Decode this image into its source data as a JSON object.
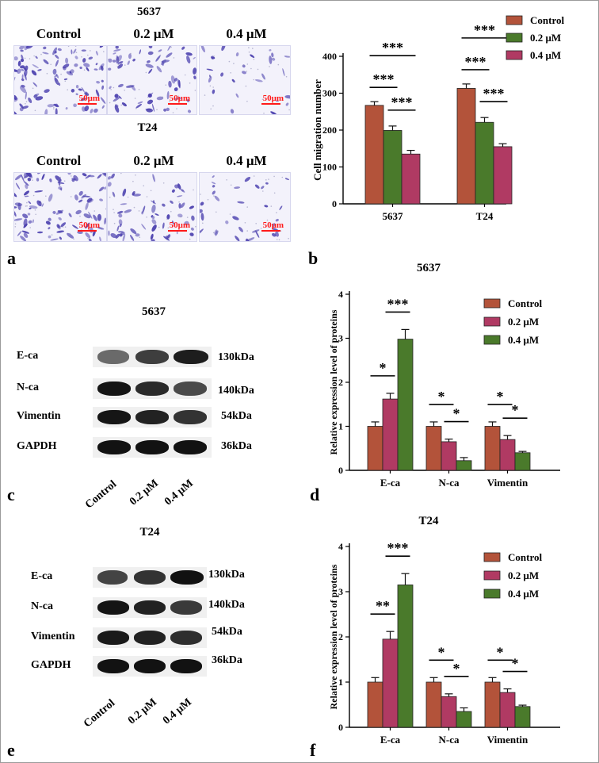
{
  "colors": {
    "control": "#b3533a",
    "c02": "#4a7a2b",
    "c04": "#b03a63",
    "stain": "#4a3fae",
    "scale": "#ff1a1a"
  },
  "panel_labels": {
    "a": "a",
    "b": "b",
    "c": "c",
    "d": "d",
    "e": "e",
    "f": "f"
  },
  "panel_a": {
    "title_5637": "5637",
    "title_t24": "T24",
    "columns": [
      "Control",
      "0.2 μM",
      "0.4 μM"
    ],
    "scale_bar": "50μm",
    "stain_density": {
      "5637": [
        0.9,
        0.6,
        0.25
      ],
      "T24": [
        0.9,
        0.55,
        0.3
      ]
    }
  },
  "blots": {
    "panel_c": {
      "title": "5637",
      "rows": [
        "E-ca",
        "N-ca",
        "Vimentin",
        "GAPDH"
      ],
      "kda": [
        "130kDa",
        "140kDa",
        "54kDa",
        "36kDa"
      ],
      "lanes": [
        "Control",
        "0.2 μM",
        "0.4 μM"
      ]
    },
    "panel_e": {
      "title": "T24",
      "rows": [
        "E-ca",
        "N-ca",
        "Vimentin",
        "GAPDH"
      ],
      "kda": [
        "130kDa",
        "140kDa",
        "54kDa",
        "36kDa"
      ],
      "lanes": [
        "Control",
        "0.2 μM",
        "0.4 μM"
      ]
    }
  },
  "chart_data": [
    {
      "id": "b",
      "type": "bar",
      "title": "",
      "categories": [
        "5637",
        "T24"
      ],
      "ylabel": "Cell migration number",
      "ylim": [
        0,
        400
      ],
      "yticks": [
        0,
        100,
        200,
        300,
        400
      ],
      "legend_position": "top-right",
      "series": [
        {
          "name": "Control",
          "values": [
            267,
            313
          ],
          "errors": [
            10,
            12
          ]
        },
        {
          "name": "0.2 μM",
          "values": [
            199,
            221
          ],
          "errors": [
            12,
            13
          ]
        },
        {
          "name": "0.4 μM",
          "values": [
            135,
            155
          ],
          "errors": [
            10,
            8
          ]
        }
      ],
      "colors": [
        "#b3533a",
        "#4a7a2b",
        "#b03a63"
      ],
      "annotations": [
        {
          "text": "***",
          "group": 0,
          "from": 0,
          "to": 2,
          "level": 1
        },
        {
          "text": "***",
          "group": 0,
          "from": 0,
          "to": 1,
          "level": 0
        },
        {
          "text": "***",
          "group": 0,
          "from": 1,
          "to": 2,
          "level": -1
        },
        {
          "text": "***",
          "group": 1,
          "from": 0,
          "to": 2,
          "level": 1
        },
        {
          "text": "***",
          "group": 1,
          "from": 0,
          "to": 1,
          "level": 0
        },
        {
          "text": "***",
          "group": 1,
          "from": 1,
          "to": 2,
          "level": -1
        }
      ]
    },
    {
      "id": "d",
      "type": "bar",
      "title": "5637",
      "categories": [
        "E-ca",
        "N-ca",
        "Vimentin"
      ],
      "ylabel": "Relative expression level of proteins",
      "ylim": [
        0,
        4
      ],
      "yticks": [
        0,
        1,
        2,
        3,
        4
      ],
      "legend_position": "top-right",
      "series": [
        {
          "name": "Control",
          "values": [
            1.0,
            1.0,
            1.0
          ],
          "errors": [
            0.1,
            0.1,
            0.1
          ]
        },
        {
          "name": "0.2 μM",
          "values": [
            1.62,
            0.65,
            0.7
          ],
          "errors": [
            0.13,
            0.06,
            0.09
          ]
        },
        {
          "name": "0.4 μM",
          "values": [
            2.98,
            0.22,
            0.4
          ],
          "errors": [
            0.22,
            0.07,
            0.03
          ]
        }
      ],
      "colors": [
        "#b3533a",
        "#b03a63",
        "#4a7a2b"
      ],
      "annotations": [
        {
          "text": "*",
          "group": 0,
          "from": 0,
          "to": 1
        },
        {
          "text": "***",
          "group": 0,
          "from": 1,
          "to": 2
        },
        {
          "text": "*",
          "group": 1,
          "from": 0,
          "to": 1
        },
        {
          "text": "*",
          "group": 1,
          "from": 1,
          "to": 2
        },
        {
          "text": "*",
          "group": 2,
          "from": 0,
          "to": 1
        },
        {
          "text": "*",
          "group": 2,
          "from": 1,
          "to": 2
        }
      ]
    },
    {
      "id": "f",
      "type": "bar",
      "title": "T24",
      "categories": [
        "E-ca",
        "N-ca",
        "Vimentin"
      ],
      "ylabel": "Relative expression level of proteins",
      "ylim": [
        0,
        4
      ],
      "yticks": [
        0,
        1,
        2,
        3,
        4
      ],
      "legend_position": "top-right",
      "series": [
        {
          "name": "Control",
          "values": [
            1.0,
            1.0,
            1.0
          ],
          "errors": [
            0.1,
            0.1,
            0.1
          ]
        },
        {
          "name": "0.2 μM",
          "values": [
            1.95,
            0.68,
            0.77
          ],
          "errors": [
            0.17,
            0.06,
            0.08
          ]
        },
        {
          "name": "0.4 μM",
          "values": [
            3.15,
            0.35,
            0.46
          ],
          "errors": [
            0.25,
            0.08,
            0.03
          ]
        }
      ],
      "colors": [
        "#b3533a",
        "#b03a63",
        "#4a7a2b"
      ],
      "annotations": [
        {
          "text": "**",
          "group": 0,
          "from": 0,
          "to": 1
        },
        {
          "text": "***",
          "group": 0,
          "from": 1,
          "to": 2
        },
        {
          "text": "*",
          "group": 1,
          "from": 0,
          "to": 1
        },
        {
          "text": "*",
          "group": 1,
          "from": 1,
          "to": 2
        },
        {
          "text": "*",
          "group": 2,
          "from": 0,
          "to": 1
        },
        {
          "text": "*",
          "group": 2,
          "from": 1,
          "to": 2
        }
      ]
    }
  ]
}
